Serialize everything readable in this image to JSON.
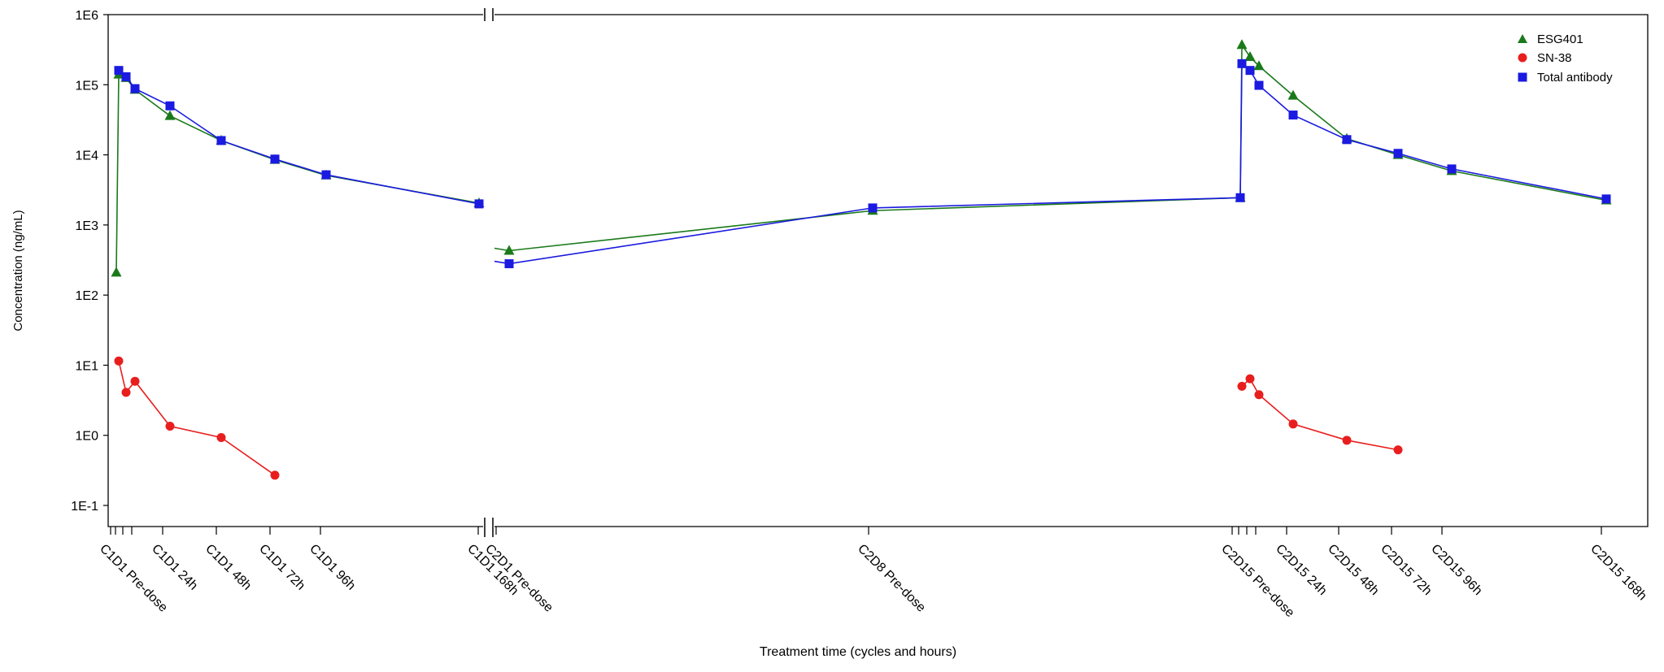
{
  "chart_data": {
    "type": "line",
    "ylabel": "Concentration (ng/mL)",
    "xlabel": "Treatment time (cycles and hours)",
    "y_scale": "log",
    "ylim": [
      0.05,
      1000000
    ],
    "y_ticks": [
      {
        "value": 1000000,
        "label": "1E6"
      },
      {
        "value": 100000,
        "label": "1E5"
      },
      {
        "value": 10000,
        "label": "1E4"
      },
      {
        "value": 1000,
        "label": "1E3"
      },
      {
        "value": 100,
        "label": "1E2"
      },
      {
        "value": 10,
        "label": "1E1"
      },
      {
        "value": 1,
        "label": "1E0"
      },
      {
        "value": 0.1,
        "label": "1E-1"
      }
    ],
    "x_break": true,
    "x_tick_labels": [
      "C1D1 Pre-dose",
      "C1D1 24h",
      "C1D1 48h",
      "C1D1 72h",
      "C1D1 96h",
      "C1D1 168h",
      "C2D1 Pre-dose",
      "C2D8 Pre-dose",
      "C2D15 Pre-dose",
      "C2D15 24h",
      "C2D15 48h",
      "C2D15 72h",
      "C2D15 96h",
      "C2D15 168h"
    ],
    "legend_position": "top-right",
    "series": [
      {
        "name": "ESG401",
        "color": "#1a7a1a",
        "marker": "triangle",
        "segments": [
          [
            [
              "C1D1 Pre-dose",
              210
            ],
            [
              "C1D1 0.5h",
              140000
            ],
            [
              "C1D1 2h",
              125000
            ],
            [
              "C1D1 4h",
              85000
            ],
            [
              "C1D1 24h",
              36000
            ],
            [
              "C1D1 48h",
              16000
            ],
            [
              "C1D1 72h",
              8500
            ],
            [
              "C1D1 96h",
              5100
            ],
            [
              "C1D1 168h",
              2050
            ]
          ],
          [
            [
              "C2D1 Pre-dose",
              430
            ],
            [
              "C2D8 Pre-dose",
              1600
            ],
            [
              "C2D15 Pre-dose",
              2450
            ],
            [
              "C2D15 0.5h",
              370000
            ],
            [
              "C2D15 2h",
              250000
            ],
            [
              "C2D15 4h",
              185000
            ],
            [
              "C2D15 24h",
              70000
            ],
            [
              "C2D15 48h",
              17000
            ],
            [
              "C2D15 72h",
              10000
            ],
            [
              "C2D15 96h",
              5900
            ],
            [
              "C2D15 168h",
              2250
            ]
          ]
        ]
      },
      {
        "name": "SN-38",
        "color": "#e81e1e",
        "marker": "circle",
        "segments": [
          [
            [
              "C1D1 0.5h",
              11.5
            ],
            [
              "C1D1 2h",
              4.1
            ],
            [
              "C1D1 4h",
              5.9
            ],
            [
              "C1D1 24h",
              1.35
            ],
            [
              "C1D1 48h",
              0.93
            ],
            [
              "C1D1 72h",
              0.27
            ]
          ],
          [
            [
              "C2D15 0.5h",
              5.0
            ],
            [
              "C2D15 2h",
              6.4
            ],
            [
              "C2D15 4h",
              3.8
            ],
            [
              "C2D15 24h",
              1.45
            ],
            [
              "C2D15 48h",
              0.85
            ],
            [
              "C2D15 72h",
              0.62
            ]
          ]
        ]
      },
      {
        "name": "Total antibody",
        "color": "#1a1ae0",
        "marker": "square",
        "segments": [
          [
            [
              "C1D1 0.5h",
              160000
            ],
            [
              "C1D1 2h",
              130000
            ],
            [
              "C1D1 4h",
              88000
            ],
            [
              "C1D1 24h",
              50000
            ],
            [
              "C1D1 48h",
              16000
            ],
            [
              "C1D1 72h",
              8700
            ],
            [
              "C1D1 96h",
              5200
            ],
            [
              "C1D1 168h",
              2000
            ]
          ],
          [
            [
              "C2D1 Pre-dose",
              280
            ],
            [
              "C2D8 Pre-dose",
              1750
            ],
            [
              "C2D15 Pre-dose",
              2450
            ],
            [
              "C2D15 0.5h",
              200000
            ],
            [
              "C2D15 2h",
              160000
            ],
            [
              "C2D15 4h",
              98000
            ],
            [
              "C2D15 24h",
              37000
            ],
            [
              "C2D15 48h",
              16500
            ],
            [
              "C2D15 72h",
              10500
            ],
            [
              "C2D15 96h",
              6300
            ],
            [
              "C2D15 168h",
              2350
            ]
          ]
        ]
      }
    ]
  }
}
